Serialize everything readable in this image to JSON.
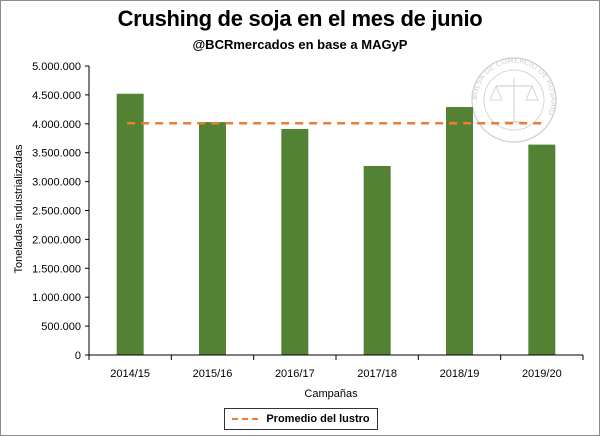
{
  "chart_data": {
    "type": "bar",
    "title": "Crushing de soja en el mes de junio",
    "subtitle": "@BCRmercados en base a MAGyP",
    "xlabel": "Campañas",
    "ylabel": "Toneladas industrializadas",
    "categories": [
      "2014/15",
      "2015/16",
      "2016/17",
      "2017/18",
      "2018/19",
      "2019/20"
    ],
    "values": [
      4520000,
      4030000,
      3910000,
      3270000,
      4290000,
      3640000
    ],
    "ylim": [
      0,
      5000000
    ],
    "yticks": [
      0,
      500000,
      1000000,
      1500000,
      2000000,
      2500000,
      3000000,
      3500000,
      4000000,
      4500000,
      5000000
    ],
    "ytick_labels": [
      "0",
      "500.000",
      "1.000.000",
      "1.500.000",
      "2.000.000",
      "2.500.000",
      "3.000.000",
      "3.500.000",
      "4.000.000",
      "4.500.000",
      "5.000.000"
    ],
    "reference_line": {
      "name": "Promedio del lustro",
      "value": 4010000
    },
    "legend": {
      "position": "bottom",
      "label": "Promedio del lustro"
    },
    "colors": {
      "bar": "#548235",
      "average_line": "#ed7d31",
      "axis": "#000000"
    }
  },
  "watermark": {
    "text": "BOLSA DE COMERCIO DE ROSARIO"
  }
}
